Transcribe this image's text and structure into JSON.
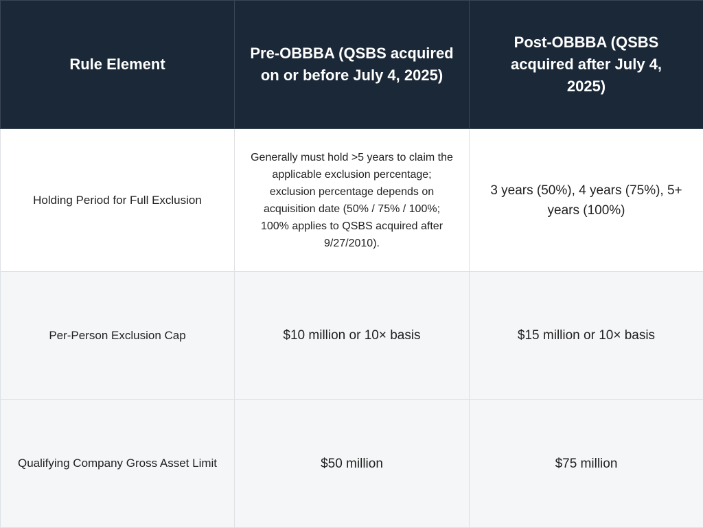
{
  "headers": [
    "Rule Element",
    "Pre-OBBBA (QSBS acquired on or before July 4, 2025)",
    "Post-OBBBA (QSBS acquired after July 4, 2025)"
  ],
  "rows": [
    {
      "element": "Holding Period for Full Exclusion",
      "pre": "Generally must hold >5 years to claim the applicable exclusion percentage; exclusion percentage depends on acquisition date (50% / 75% / 100%; 100% applies to QSBS acquired after 9/27/2010).",
      "post": "3 years (50%), 4 years (75%), 5+ years (100%)"
    },
    {
      "element": "Per-Person Exclusion Cap",
      "pre": "$10 million or 10× basis",
      "post": "$15 million or 10× basis"
    },
    {
      "element": "Qualifying Company Gross Asset Limit",
      "pre": "$50 million",
      "post": "$75 million"
    }
  ]
}
